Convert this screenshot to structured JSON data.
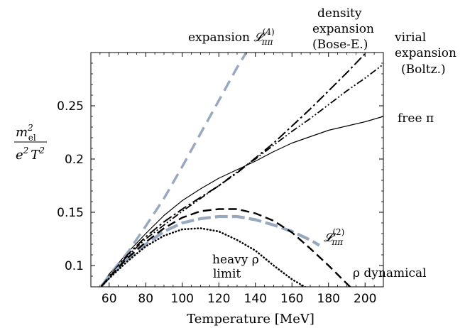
{
  "chart_data": {
    "type": "line",
    "xlabel": "Temperature [MeV]",
    "ylabel": {
      "numerator": "m",
      "numerator_sub": "el",
      "numerator_sup": "2",
      "denominator": "e",
      "denominator_sup": "2",
      "denominator_var": "T",
      "denominator_var_sup": "2"
    },
    "xlim": [
      50,
      210
    ],
    "ylim": [
      0.08,
      0.3
    ],
    "xticks": [
      60,
      80,
      100,
      120,
      140,
      160,
      180,
      200
    ],
    "yticks": [
      0.1,
      0.15,
      0.2,
      0.25
    ],
    "ytick_labels": [
      "0.1",
      "0.15",
      "0.2",
      "0.25"
    ],
    "grid": false,
    "series": [
      {
        "name": "free π",
        "style": "solid-thin",
        "color": "#000000",
        "x": [
          56,
          60,
          70,
          80,
          90,
          100,
          110,
          120,
          130,
          140,
          150,
          160,
          170,
          180,
          190,
          200,
          210
        ],
        "y": [
          0.081,
          0.092,
          0.112,
          0.13,
          0.147,
          0.161,
          0.172,
          0.182,
          0.19,
          0.198,
          0.207,
          0.215,
          0.221,
          0.227,
          0.231,
          0.235,
          0.24
        ]
      },
      {
        "name": "expansion 𝓛ππ(4)",
        "style": "long-dash-thick",
        "color": "#97a8bf",
        "x": [
          56,
          60,
          70,
          80,
          90,
          100,
          110,
          120,
          130,
          135
        ],
        "y": [
          0.081,
          0.091,
          0.112,
          0.137,
          0.163,
          0.193,
          0.224,
          0.255,
          0.286,
          0.3
        ]
      },
      {
        "name": "density expansion (Bose-E.)",
        "style": "dash-dot",
        "color": "#000000",
        "x": [
          56,
          60,
          70,
          80,
          90,
          100,
          110,
          120,
          130,
          140,
          150,
          160,
          170,
          180,
          190,
          200
        ],
        "y": [
          0.081,
          0.09,
          0.11,
          0.127,
          0.141,
          0.153,
          0.164,
          0.175,
          0.187,
          0.201,
          0.215,
          0.231,
          0.247,
          0.264,
          0.281,
          0.299
        ]
      },
      {
        "name": "virial expansion (Boltz.)",
        "style": "dash-dot-dot",
        "color": "#000000",
        "x": [
          56,
          60,
          70,
          80,
          90,
          100,
          110,
          120,
          130,
          140,
          150,
          160,
          170,
          180,
          190,
          200,
          210
        ],
        "y": [
          0.081,
          0.09,
          0.109,
          0.125,
          0.138,
          0.151,
          0.163,
          0.175,
          0.188,
          0.2,
          0.213,
          0.226,
          0.238,
          0.251,
          0.264,
          0.276,
          0.289
        ]
      },
      {
        "name": "𝓛ππ(2)",
        "style": "dash-thick",
        "color": "#97a8bf",
        "x": [
          56,
          60,
          70,
          80,
          90,
          100,
          110,
          120,
          130,
          140,
          150,
          160,
          170,
          175
        ],
        "y": [
          0.081,
          0.089,
          0.106,
          0.12,
          0.132,
          0.14,
          0.144,
          0.146,
          0.146,
          0.143,
          0.138,
          0.132,
          0.124,
          0.119
        ]
      },
      {
        "name": "ρ dynamical",
        "style": "dash",
        "color": "#000000",
        "x": [
          56,
          60,
          70,
          80,
          90,
          100,
          110,
          120,
          130,
          140,
          150,
          160,
          170,
          180,
          190,
          193
        ],
        "y": [
          0.081,
          0.089,
          0.107,
          0.122,
          0.135,
          0.145,
          0.151,
          0.153,
          0.153,
          0.149,
          0.142,
          0.131,
          0.116,
          0.1,
          0.083,
          0.078
        ]
      },
      {
        "name": "heavy ρ limit",
        "style": "dotted",
        "color": "#000000",
        "x": [
          56,
          60,
          70,
          80,
          90,
          100,
          110,
          120,
          130,
          140,
          150,
          160,
          168
        ],
        "y": [
          0.081,
          0.088,
          0.104,
          0.118,
          0.128,
          0.134,
          0.135,
          0.132,
          0.124,
          0.114,
          0.1,
          0.087,
          0.079
        ]
      }
    ],
    "annotations": {
      "expansion_L4": {
        "text": "expansion ",
        "symbol": "𝓛",
        "sub": "ππ",
        "sup": "(4)"
      },
      "density_expansion": [
        "density",
        "expansion",
        "(Bose-E.)"
      ],
      "virial_expansion": [
        "virial",
        "expansion",
        "(Boltz.)"
      ],
      "free_pi": "free π",
      "L2": {
        "symbol": "𝓛",
        "sub": "ππ",
        "sup": "(2)"
      },
      "heavy_rho": [
        "heavy ρ",
        "limit"
      ],
      "rho_dynamical": "ρ dynamical"
    },
    "colors": {
      "axis": "#000000",
      "accent": "#97a8bf"
    }
  }
}
